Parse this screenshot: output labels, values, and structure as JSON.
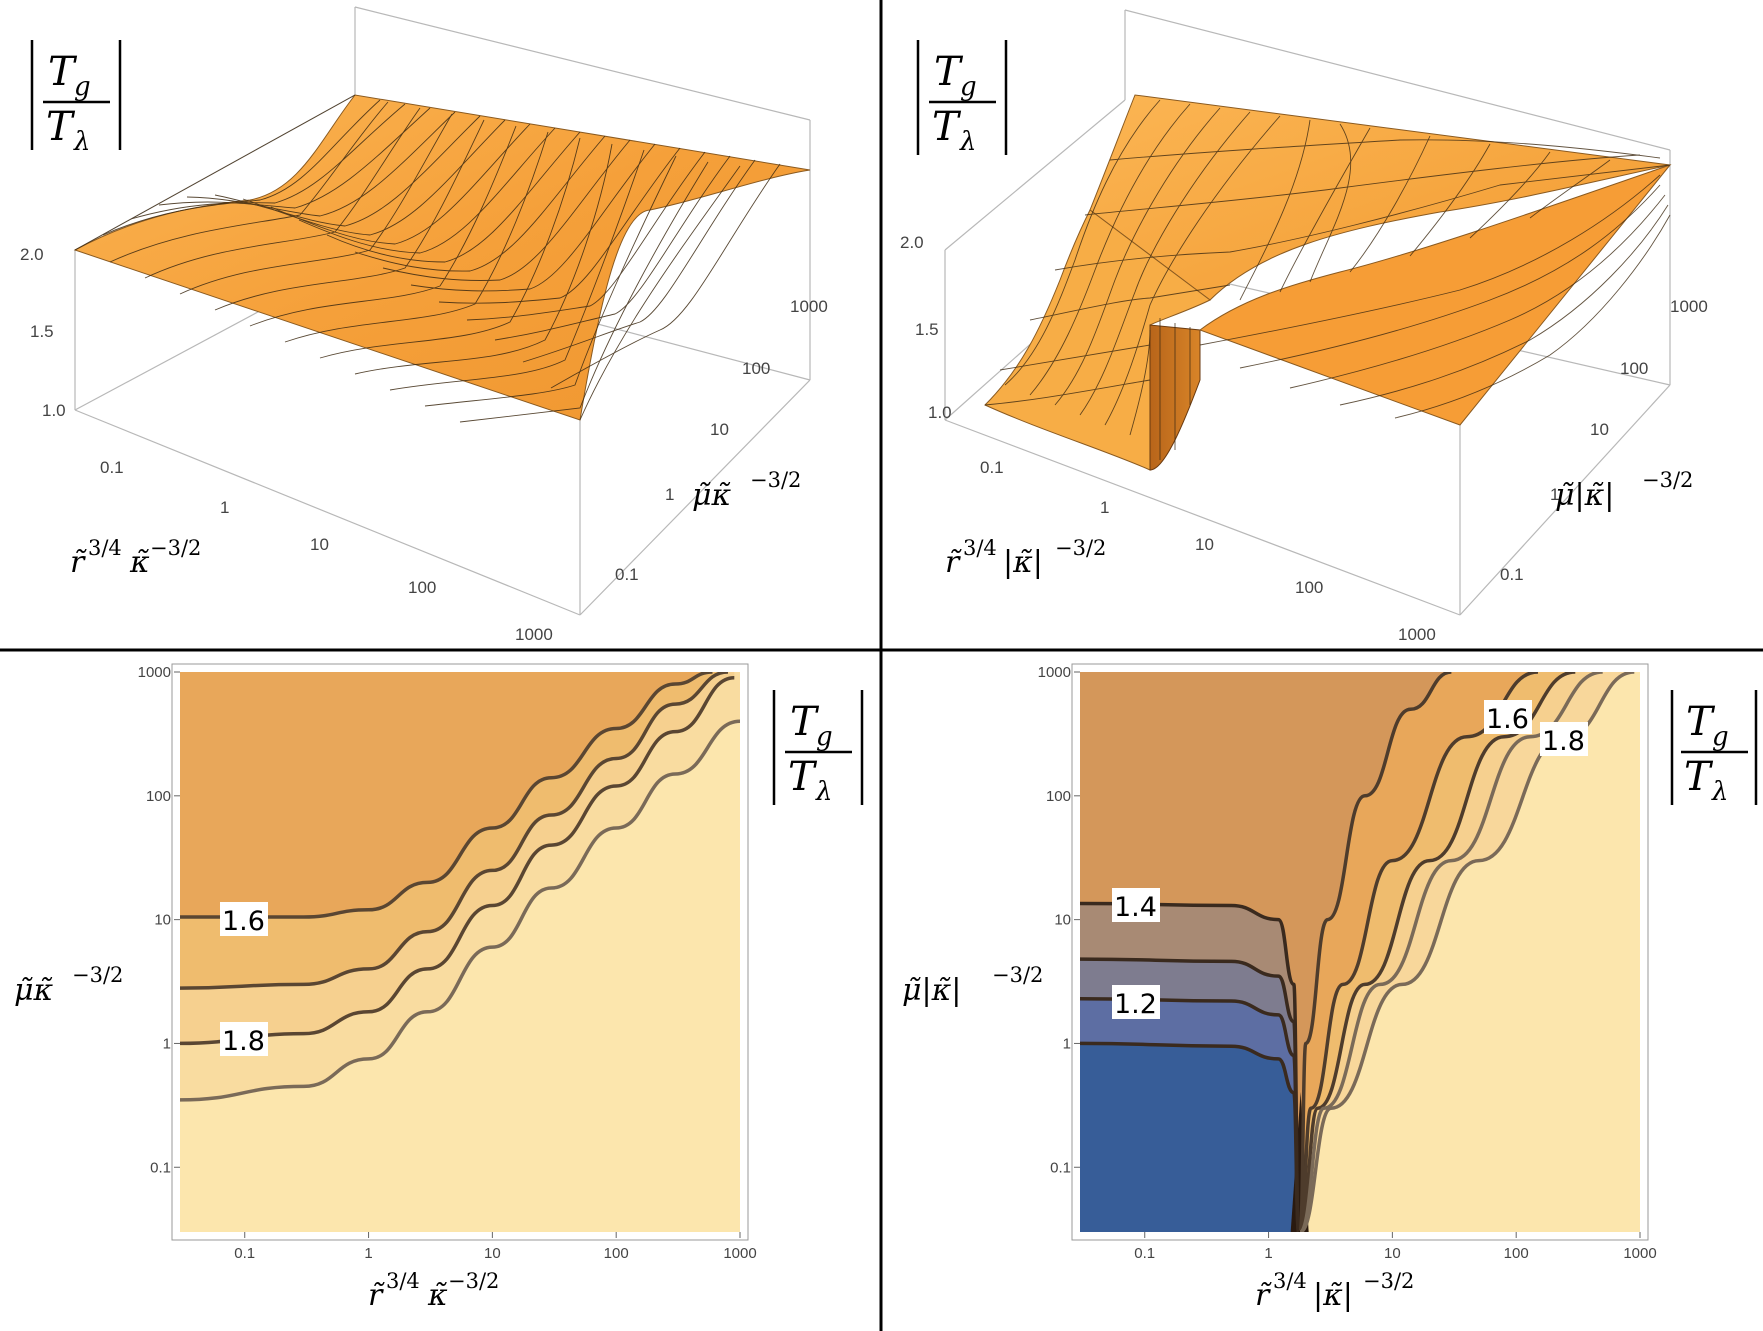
{
  "panels": {
    "top_left": {
      "zlabel_num": "T",
      "zlabel_num_sub": "g",
      "zlabel_den": "T",
      "zlabel_den_sub": "λ",
      "z_ticks": [
        "2.0",
        "1.5",
        "1.0"
      ],
      "x_ticks": [
        "0.1",
        "1",
        "10",
        "100",
        "1000"
      ],
      "y_ticks": [
        "0.1",
        "1",
        "10",
        "100",
        "1000"
      ],
      "xlabel_main": "r̃",
      "xlabel_sup1": "3/4",
      "xlabel_mid": "κ̃",
      "xlabel_sup2": "−3/2",
      "ylabel_main": "μ̃κ̃",
      "ylabel_sup": "−3/2"
    },
    "top_right": {
      "zlabel_num": "T",
      "zlabel_num_sub": "g",
      "zlabel_den": "T",
      "zlabel_den_sub": "λ",
      "z_ticks": [
        "2.0",
        "1.5",
        "1.0"
      ],
      "x_ticks": [
        "0.1",
        "1",
        "10",
        "100",
        "1000"
      ],
      "y_ticks": [
        "0.1",
        "1",
        "10",
        "100",
        "1000"
      ],
      "xlabel_main": "r̃",
      "xlabel_sup1": "3/4",
      "xlabel_mid": "|κ̃|",
      "xlabel_sup2": "−3/2",
      "ylabel_main": "μ̃|κ̃|",
      "ylabel_sup": "−3/2"
    },
    "bottom_left": {
      "zlabel_num": "T",
      "zlabel_num_sub": "g",
      "zlabel_den": "T",
      "zlabel_den_sub": "λ",
      "x_ticks": [
        "0.1",
        "1",
        "10",
        "100",
        "1000"
      ],
      "y_ticks": [
        "1000",
        "100",
        "10",
        "1",
        "0.1"
      ],
      "xlabel_main": "r̃",
      "xlabel_sup1": "3/4",
      "xlabel_mid": "κ̃",
      "xlabel_sup2": "−3/2",
      "ylabel_main": "μ̃κ̃",
      "ylabel_sup": "−3/2",
      "contour_labels": [
        "1.6",
        "1.8"
      ]
    },
    "bottom_right": {
      "zlabel_num": "T",
      "zlabel_num_sub": "g",
      "zlabel_den": "T",
      "zlabel_den_sub": "λ",
      "x_ticks": [
        "0.1",
        "1",
        "10",
        "100",
        "1000"
      ],
      "y_ticks": [
        "1000",
        "100",
        "10",
        "1",
        "0.1"
      ],
      "xlabel_main": "r̃",
      "xlabel_sup1": "3/4",
      "xlabel_mid": "|κ̃|",
      "xlabel_sup2": "−3/2",
      "ylabel_main": "μ̃|κ̃|",
      "ylabel_sup": "−3/2",
      "contour_labels": [
        "1.4",
        "1.2",
        "1.6",
        "1.8"
      ]
    }
  },
  "colors": {
    "surface": "#f5a53a",
    "surface_dark": "#c9761f",
    "contour_light": "#fce6ad",
    "contour_band1": "#f6d08f",
    "contour_band2": "#efbc6e",
    "contour_band3": "#e8a75a",
    "contour_band4": "#d4975a",
    "contour_brown": "#a88a74",
    "contour_gray": "#7e7c8f",
    "contour_blue1": "#5d6ea3",
    "contour_blue2": "#375d98",
    "contour_line": "#5a4a3a",
    "divider": "#000000"
  },
  "chart_data": [
    {
      "type": "surface",
      "panel": "top_left",
      "x_axis": {
        "label": "r̃^{3/4} κ̃^{-3/2}",
        "scale": "log",
        "range": [
          0.03,
          1000
        ],
        "ticks": [
          0.1,
          1,
          10,
          100,
          1000
        ]
      },
      "y_axis": {
        "label": "μ̃ κ̃^{-3/2}",
        "scale": "log",
        "range": [
          0.03,
          1000
        ],
        "ticks": [
          0.1,
          1,
          10,
          100,
          1000
        ]
      },
      "z_axis": {
        "label": "|T_g / T_λ|",
        "range": [
          1.0,
          2.0
        ],
        "ticks": [
          1.0,
          1.5,
          2.0
        ]
      },
      "description_values": {
        "z_at_small_mu": 2.0,
        "z_at_large_mu_small_r": 1.55,
        "z_at_large_r": 2.0
      }
    },
    {
      "type": "surface",
      "panel": "top_right",
      "x_axis": {
        "label": "r̃^{3/4} |κ̃|^{-3/2}",
        "scale": "log",
        "range": [
          0.03,
          1000
        ],
        "ticks": [
          0.1,
          1,
          10,
          100,
          1000
        ]
      },
      "y_axis": {
        "label": "μ̃ |κ̃|^{-3/2}",
        "scale": "log",
        "range": [
          0.03,
          1000
        ],
        "ticks": [
          0.1,
          1,
          10,
          100,
          1000
        ]
      },
      "z_axis": {
        "label": "|T_g / T_λ|",
        "range": [
          1.0,
          2.0
        ],
        "ticks": [
          1.0,
          1.5,
          2.0
        ]
      },
      "description_values": {
        "z_at_small_mu_small_r": 1.0,
        "step_location_x": 1.8,
        "z_at_large_r": 2.0
      }
    },
    {
      "type": "contour",
      "panel": "bottom_left",
      "x_axis": {
        "label": "r̃^{3/4} κ̃^{-3/2}",
        "scale": "log",
        "range": [
          0.03,
          1000
        ],
        "ticks": [
          0.1,
          1,
          10,
          100,
          1000
        ]
      },
      "y_axis": {
        "label": "μ̃ κ̃^{-3/2}",
        "scale": "log",
        "range": [
          0.03,
          1000
        ],
        "ticks": [
          0.1,
          1,
          10,
          100,
          1000
        ]
      },
      "legend": "|T_g / T_λ|",
      "contour_levels": [
        1.6,
        1.7,
        1.8,
        1.9
      ],
      "labeled_levels": [
        1.6,
        1.8
      ],
      "contours": [
        {
          "level": 1.6,
          "x": [
            0.03,
            0.3,
            1,
            3,
            10,
            30,
            100,
            300,
            600
          ],
          "y": [
            10.5,
            10.5,
            12,
            20,
            55,
            140,
            350,
            800,
            1000
          ]
        },
        {
          "level": 1.7,
          "x": [
            0.03,
            0.3,
            1,
            3,
            10,
            30,
            100,
            300,
            800
          ],
          "y": [
            2.8,
            3.0,
            4.0,
            8.0,
            25,
            70,
            200,
            550,
            1000
          ]
        },
        {
          "level": 1.8,
          "x": [
            0.03,
            0.3,
            1,
            3,
            10,
            30,
            100,
            300,
            900
          ],
          "y": [
            1.0,
            1.2,
            1.8,
            4.0,
            13,
            40,
            120,
            330,
            900
          ]
        },
        {
          "level": 1.9,
          "x": [
            0.03,
            0.3,
            1,
            3,
            10,
            30,
            100,
            300,
            1000
          ],
          "y": [
            0.35,
            0.45,
            0.75,
            1.8,
            6.0,
            18,
            55,
            150,
            400
          ]
        }
      ]
    },
    {
      "type": "contour",
      "panel": "bottom_right",
      "x_axis": {
        "label": "r̃^{3/4} |κ̃|^{-3/2}",
        "scale": "log",
        "range": [
          0.03,
          1000
        ],
        "ticks": [
          0.1,
          1,
          10,
          100,
          1000
        ]
      },
      "y_axis": {
        "label": "μ̃ |κ̃|^{-3/2}",
        "scale": "log",
        "range": [
          0.03,
          1000
        ],
        "ticks": [
          0.1,
          1,
          10,
          100,
          1000
        ]
      },
      "legend": "|T_g / T_λ|",
      "contour_levels": [
        1.1,
        1.2,
        1.3,
        1.4,
        1.5,
        1.6,
        1.7,
        1.8,
        1.9
      ],
      "labeled_levels": [
        1.4,
        1.2,
        1.6,
        1.8
      ],
      "contours": [
        {
          "level": 1.4,
          "x": [
            0.03,
            0.5,
            1.2,
            1.6,
            1.75
          ],
          "y": [
            13.5,
            13.0,
            10.0,
            3.0,
            0.03
          ]
        },
        {
          "level": 1.3,
          "x": [
            0.03,
            0.5,
            1.2,
            1.6,
            1.75
          ],
          "y": [
            4.8,
            4.6,
            3.5,
            1.5,
            0.03
          ]
        },
        {
          "level": 1.2,
          "x": [
            0.03,
            0.5,
            1.2,
            1.6,
            1.75
          ],
          "y": [
            2.3,
            2.2,
            1.7,
            0.8,
            0.03
          ]
        },
        {
          "level": 1.1,
          "x": [
            0.03,
            0.5,
            1.2,
            1.6,
            1.75
          ],
          "y": [
            1.0,
            0.95,
            0.75,
            0.4,
            0.03
          ]
        },
        {
          "level": 1.5,
          "x": [
            1.8,
            2.0,
            3.0,
            6.0,
            14,
            30
          ],
          "y": [
            0.03,
            1.0,
            10,
            100,
            500,
            1000
          ]
        },
        {
          "level": 1.6,
          "x": [
            1.8,
            2.2,
            4.0,
            10,
            40,
            150
          ],
          "y": [
            0.03,
            0.3,
            3,
            30,
            300,
            1000
          ]
        },
        {
          "level": 1.7,
          "x": [
            1.8,
            2.5,
            6.0,
            20,
            80,
            300
          ],
          "y": [
            0.03,
            0.3,
            3,
            30,
            300,
            1000
          ]
        },
        {
          "level": 1.8,
          "x": [
            1.8,
            2.8,
            8.0,
            30,
            130,
            500
          ],
          "y": [
            0.03,
            0.3,
            3,
            30,
            300,
            1000
          ]
        },
        {
          "level": 1.9,
          "x": [
            1.8,
            3.2,
            12,
            50,
            250,
            900
          ],
          "y": [
            0.03,
            0.3,
            3,
            30,
            300,
            1000
          ]
        }
      ]
    }
  ]
}
